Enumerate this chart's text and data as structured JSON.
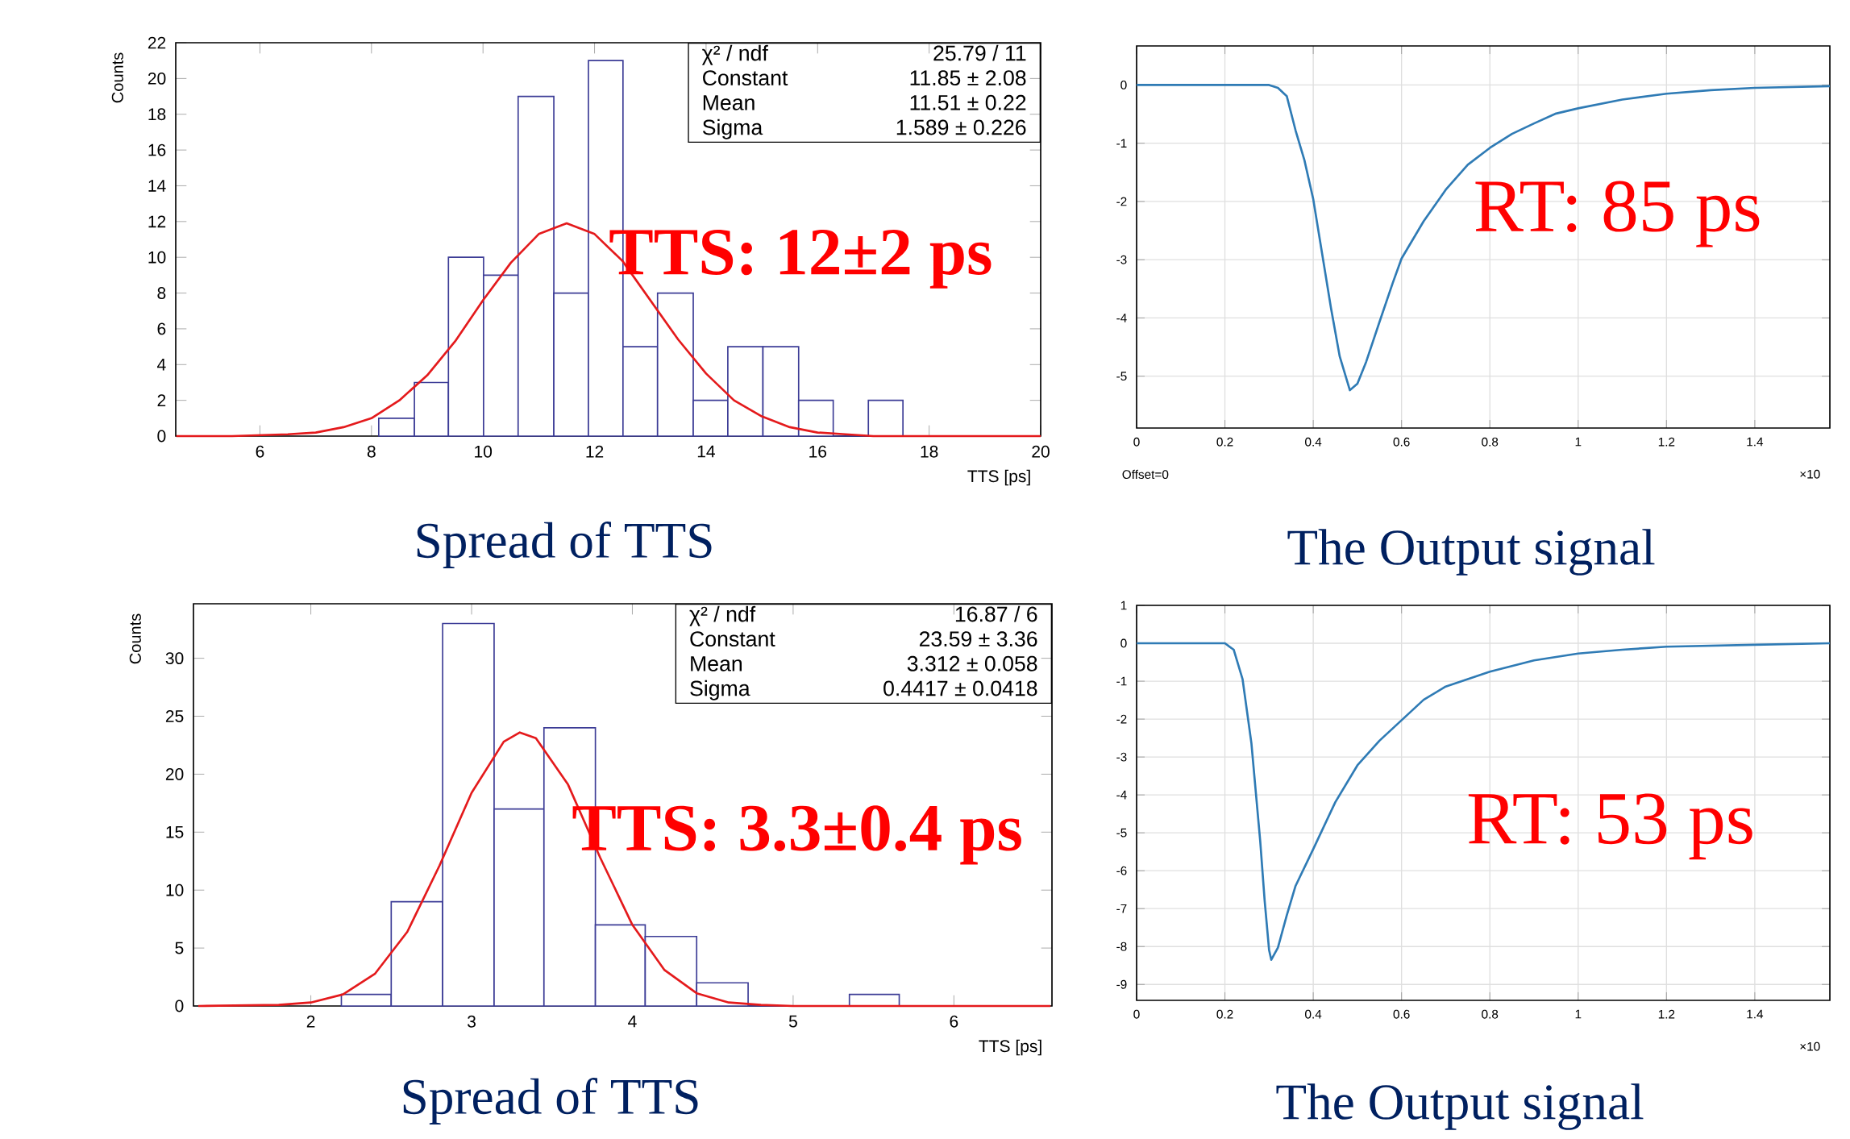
{
  "chart_data": [
    {
      "type": "histogram",
      "title": "Spread of TTS",
      "xlabel": "TTS [ps]",
      "ylabel": "Counts",
      "bins": [
        8.13,
        8.77,
        9.38,
        10.01,
        10.63,
        11.27,
        11.89,
        12.51,
        13.13,
        13.77,
        14.39,
        15.02,
        15.66,
        16.28,
        16.91,
        17.53
      ],
      "values": [
        1,
        3,
        10,
        9,
        19,
        8,
        21,
        5,
        8,
        2,
        5,
        5,
        2,
        0,
        2
      ],
      "color": "#3c3c96",
      "xlim": [
        4.49,
        20
      ],
      "ylim": [
        0,
        22
      ],
      "xticks": [
        6,
        8,
        10,
        12,
        14,
        16,
        18,
        20
      ],
      "yticks": [
        0,
        2,
        4,
        6,
        8,
        10,
        12,
        14,
        16,
        18,
        20,
        22
      ],
      "annotations": [
        "TTS: 12±2 ps",
        "χ² / ndf",
        "25.79 / 11",
        "Constant",
        "11.85 ± 2.08",
        "Mean",
        "11.51 ± 0.22",
        "Sigma",
        "1.589 ± 0.226"
      ],
      "series": [
        {
          "type": "line",
          "color": "#e41a1c",
          "x": [
            4.5,
            5.5,
            6.5,
            7,
            7.5,
            8,
            8.5,
            9,
            9.5,
            10,
            10.5,
            11,
            11.5,
            12,
            12.5,
            13,
            13.5,
            14,
            14.5,
            15,
            15.5,
            16,
            16.5,
            17,
            18,
            20
          ],
          "values": [
            0,
            0,
            0.1,
            0.2,
            0.5,
            1.0,
            2.0,
            3.4,
            5.3,
            7.6,
            9.7,
            11.3,
            11.9,
            11.3,
            9.8,
            7.6,
            5.4,
            3.5,
            2.0,
            1.1,
            0.5,
            0.2,
            0.1,
            0,
            0,
            0
          ]
        }
      ]
    },
    {
      "type": "line",
      "title": "The Output signal",
      "color": "#2f7bb5",
      "grid": true,
      "x": [
        0,
        0.3,
        0.32,
        0.34,
        0.36,
        0.38,
        0.4,
        0.42,
        0.44,
        0.46,
        0.483,
        0.5,
        0.52,
        0.55,
        0.58,
        0.6,
        0.65,
        0.7,
        0.75,
        0.8,
        0.85,
        0.9,
        0.95,
        1.0,
        1.1,
        1.2,
        1.3,
        1.4,
        1.57
      ],
      "values": [
        0,
        0,
        -0.05,
        -0.19,
        -0.78,
        -1.29,
        -1.96,
        -2.89,
        -3.82,
        -4.66,
        -5.24,
        -5.13,
        -4.75,
        -4.07,
        -3.4,
        -2.98,
        -2.34,
        -1.8,
        -1.37,
        -1.08,
        -0.84,
        -0.66,
        -0.49,
        -0.4,
        -0.25,
        -0.15,
        -0.09,
        -0.05,
        -0.02
      ],
      "xlim": [
        0,
        1.57
      ],
      "ylim": [
        -5.89,
        0.67
      ],
      "xticks": [
        0,
        0.2,
        0.4,
        0.6,
        0.8,
        1,
        1.2,
        1.4
      ],
      "yticks": [
        -5,
        -4,
        -3,
        -2,
        -1,
        0
      ],
      "annotations": [
        "RT: 85 ps",
        "Offset=0",
        "×10"
      ]
    },
    {
      "type": "histogram",
      "title": "Spread of TTS",
      "xlabel": "TTS [ps]",
      "ylabel": "Counts",
      "bins": [
        2.19,
        2.5,
        2.82,
        3.14,
        3.45,
        3.77,
        4.08,
        4.4,
        4.72,
        5.03,
        5.35,
        5.66
      ],
      "values": [
        1,
        9,
        33,
        17,
        24,
        7,
        6,
        2,
        0,
        0,
        1
      ],
      "color": "#3c3c96",
      "xlim": [
        1.27,
        6.61
      ],
      "ylim": [
        0,
        34.7
      ],
      "xticks": [
        2,
        3,
        4,
        5,
        6
      ],
      "yticks": [
        0,
        5,
        10,
        15,
        20,
        25,
        30
      ],
      "annotations": [
        "TTS: 3.3±0.4 ps",
        "χ² / ndf",
        "16.87 / 6",
        "Constant",
        "23.59 ± 3.36",
        "Mean",
        "3.312 ± 0.058",
        "Sigma",
        "0.4417 ± 0.0418"
      ],
      "series": [
        {
          "type": "line",
          "color": "#e41a1c",
          "x": [
            1.3,
            1.8,
            2.0,
            2.2,
            2.4,
            2.6,
            2.8,
            3.0,
            3.2,
            3.3,
            3.4,
            3.6,
            3.8,
            4.0,
            4.2,
            4.4,
            4.6,
            4.8,
            5.0,
            5.5,
            6.0,
            6.6
          ],
          "values": [
            0,
            0.1,
            0.3,
            1.0,
            2.8,
            6.4,
            12.1,
            18.4,
            22.8,
            23.6,
            23.1,
            19.1,
            12.8,
            7.0,
            3.1,
            1.1,
            0.3,
            0.1,
            0,
            0,
            0,
            0
          ]
        }
      ]
    },
    {
      "type": "line",
      "title": "The Output signal",
      "color": "#2f7bb5",
      "grid": true,
      "x": [
        0,
        0.2,
        0.22,
        0.24,
        0.26,
        0.28,
        0.29,
        0.3,
        0.305,
        0.32,
        0.34,
        0.36,
        0.4,
        0.45,
        0.5,
        0.55,
        0.6,
        0.65,
        0.7,
        0.8,
        0.9,
        1.0,
        1.1,
        1.2,
        1.4,
        1.57
      ],
      "values": [
        0,
        0,
        -0.17,
        -0.95,
        -2.64,
        -5.23,
        -6.79,
        -8.09,
        -8.35,
        -8.03,
        -7.18,
        -6.4,
        -5.43,
        -4.19,
        -3.22,
        -2.57,
        -2.03,
        -1.49,
        -1.14,
        -0.75,
        -0.45,
        -0.27,
        -0.17,
        -0.09,
        -0.04,
        0
      ],
      "xlim": [
        0,
        1.57
      ],
      "ylim": [
        -9.42,
        1
      ],
      "xticks": [
        0,
        0.2,
        0.4,
        0.6,
        0.8,
        1,
        1.2,
        1.4
      ],
      "yticks": [
        -9,
        -8,
        -7,
        -6,
        -5,
        -4,
        -3,
        -2,
        -1,
        0,
        1
      ],
      "annotations": [
        "RT: 53 ps",
        "×10"
      ]
    }
  ]
}
